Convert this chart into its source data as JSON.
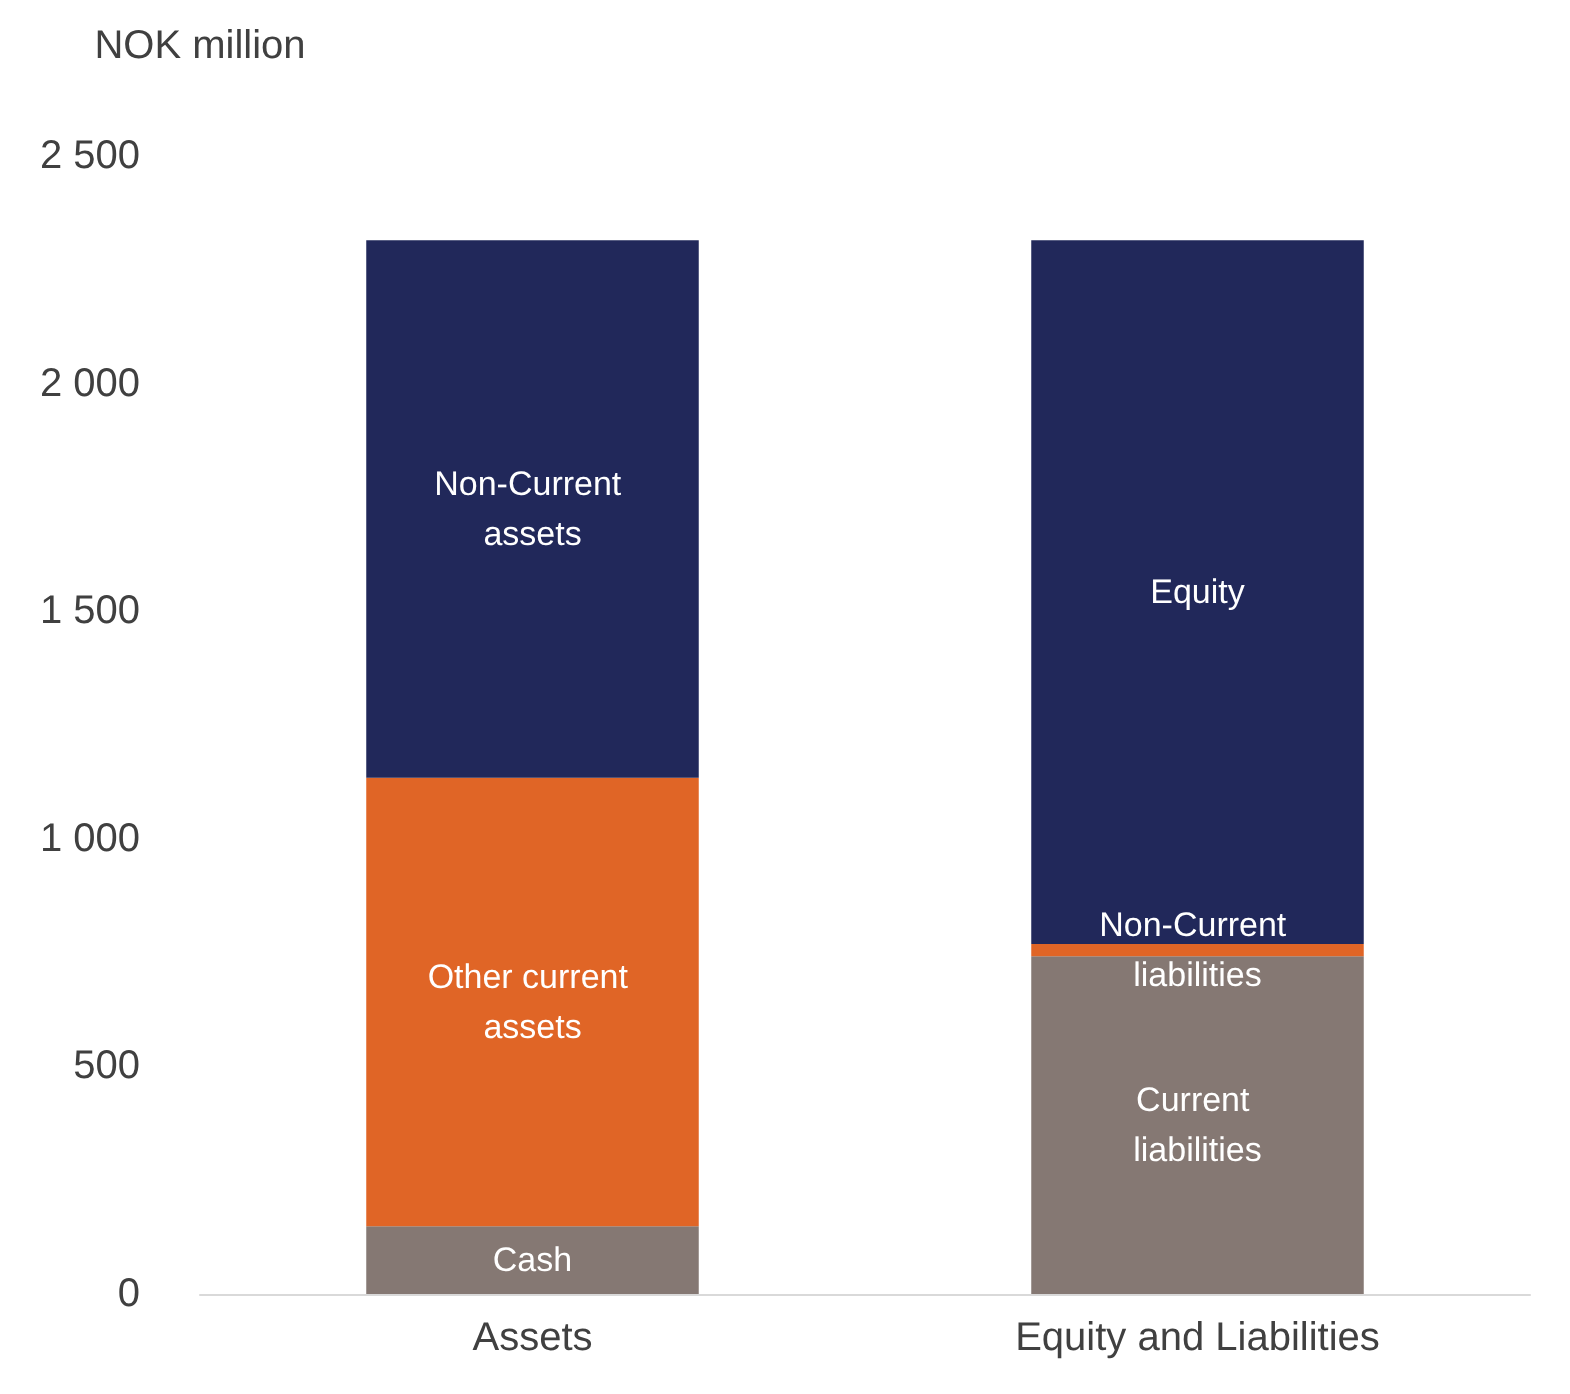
{
  "chart_data": {
    "type": "bar",
    "stacked": true,
    "ylabel": "NOK million",
    "categories": [
      "Assets",
      "Equity and Liabilities"
    ],
    "series": [
      {
        "name": "Cash",
        "color": "#857873",
        "values": [
          149,
          null
        ]
      },
      {
        "name": "Other current assets",
        "color": "#e06526",
        "values": [
          985,
          null
        ]
      },
      {
        "name": "Non-Current assets",
        "color": "#21285a",
        "values": [
          1181,
          null
        ]
      },
      {
        "name": "Current liabilities",
        "color": "#857873",
        "values": [
          null,
          742
        ]
      },
      {
        "name": "Non-Current liabilities",
        "color": "#e06526",
        "values": [
          null,
          27
        ]
      },
      {
        "name": "Equity",
        "color": "#21285a",
        "values": [
          null,
          1546
        ]
      }
    ],
    "ylim": [
      0,
      2500
    ],
    "yticks": [
      0,
      500,
      {
        "value": 1000,
        "label": "1 000"
      },
      {
        "value": 1500,
        "label": "1 500"
      },
      {
        "value": 2000,
        "label": "2 000"
      },
      {
        "value": 2500,
        "label": "2 500"
      }
    ],
    "grid": false,
    "legend": false
  }
}
